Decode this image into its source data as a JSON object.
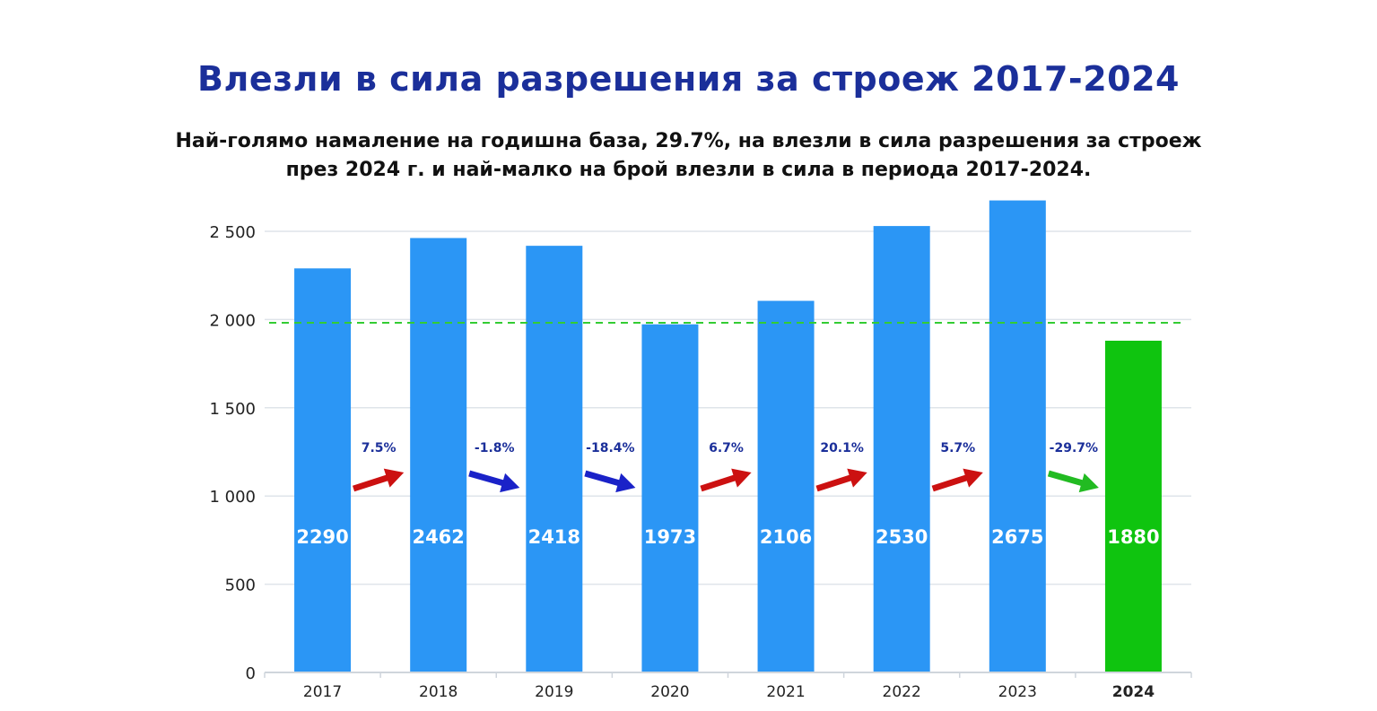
{
  "chart_data": {
    "type": "bar",
    "title": "Влезли в сила разрешения за строеж 2017-2024",
    "subtitle_lines": [
      "Най-голямо намаление на годишна база, 29.7%, на влезли в сила разрешения за строеж",
      "през 2024 г. и най-малко на брой влезли в сила в периода 2017-2024."
    ],
    "categories": [
      "2017",
      "2018",
      "2019",
      "2020",
      "2021",
      "2022",
      "2023",
      "2024"
    ],
    "values": [
      2290,
      2462,
      2418,
      1973,
      2106,
      2530,
      2675,
      1880
    ],
    "value_labels": [
      "2290",
      "2462",
      "2418",
      "1973",
      "2106",
      "2530",
      "2675",
      "1880"
    ],
    "changes": [
      "7.5%",
      "-1.8%",
      "-18.4%",
      "6.7%",
      "20.1%",
      "5.7%",
      "-29.7%"
    ],
    "yticks": [
      0,
      500,
      1000,
      1500,
      2000,
      2500
    ],
    "ytick_labels": [
      "0",
      "500",
      "1 000",
      "1 500",
      "2 000",
      "2 500"
    ],
    "ylim": [
      0,
      2700
    ],
    "reference_line": 1880,
    "highlight_index": 7,
    "grid": true,
    "legend": "none",
    "colors": {
      "bar": "#2b96f5",
      "highlight_bar": "#0fc40f",
      "reference_line": "#33cc33",
      "arrow_up": "#cc1111",
      "arrow_down": "#1a22c8",
      "arrow_final": "#22bb22",
      "title": "#1b2f9a",
      "change_label": "#1b2f9a"
    }
  }
}
